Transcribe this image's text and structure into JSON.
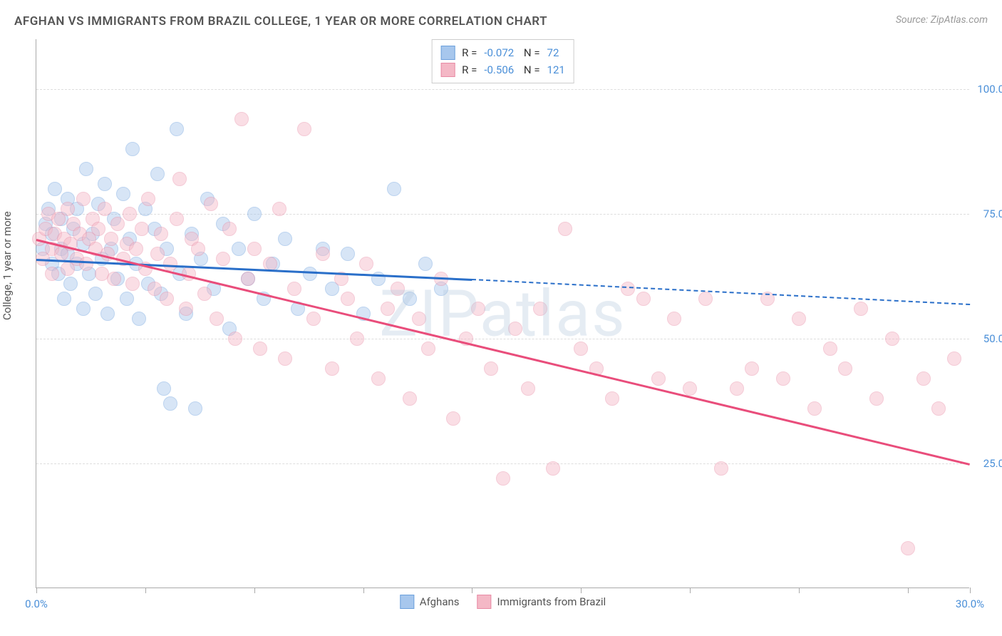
{
  "title": "AFGHAN VS IMMIGRANTS FROM BRAZIL COLLEGE, 1 YEAR OR MORE CORRELATION CHART",
  "source": "Source: ZipAtlas.com",
  "ylabel": "College, 1 year or more",
  "watermark": "ZIPatlas",
  "chart": {
    "type": "scatter",
    "xlim": [
      0,
      30
    ],
    "ylim": [
      0,
      110
    ],
    "xtick_positions": [
      0,
      3.5,
      7,
      10.5,
      14,
      17.5,
      21,
      24.5,
      28,
      30
    ],
    "xtick_labels": {
      "0": "0.0%",
      "30": "30.0%"
    },
    "ytick_positions": [
      25,
      50,
      75,
      100
    ],
    "ytick_labels": [
      "25.0%",
      "50.0%",
      "75.0%",
      "100.0%"
    ],
    "grid_color": "#dddddd",
    "axis_color": "#aaaaaa",
    "label_color": "#4a8fd8",
    "background_color": "#ffffff",
    "marker_radius": 10,
    "marker_opacity": 0.45,
    "series": [
      {
        "name": "Afghans",
        "fill": "#a7c7ed",
        "stroke": "#6ca0dc",
        "line_color": "#2a6fc9",
        "R": "-0.072",
        "N": "72",
        "trend": {
          "x1": 0,
          "y1": 66,
          "x2": 14,
          "y2": 62,
          "ext_x2": 30,
          "ext_y2": 57
        },
        "points": [
          [
            0.2,
            68
          ],
          [
            0.3,
            73
          ],
          [
            0.4,
            76
          ],
          [
            0.5,
            65
          ],
          [
            0.5,
            71
          ],
          [
            0.6,
            80
          ],
          [
            0.7,
            63
          ],
          [
            0.8,
            68
          ],
          [
            0.8,
            74
          ],
          [
            0.9,
            58
          ],
          [
            1.0,
            78
          ],
          [
            1.0,
            67
          ],
          [
            1.1,
            61
          ],
          [
            1.2,
            72
          ],
          [
            1.3,
            65
          ],
          [
            1.3,
            76
          ],
          [
            1.5,
            56
          ],
          [
            1.5,
            69
          ],
          [
            1.6,
            84
          ],
          [
            1.7,
            63
          ],
          [
            1.8,
            71
          ],
          [
            1.9,
            59
          ],
          [
            2.0,
            77
          ],
          [
            2.1,
            66
          ],
          [
            2.2,
            81
          ],
          [
            2.3,
            55
          ],
          [
            2.4,
            68
          ],
          [
            2.5,
            74
          ],
          [
            2.6,
            62
          ],
          [
            2.8,
            79
          ],
          [
            2.9,
            58
          ],
          [
            3.0,
            70
          ],
          [
            3.1,
            88
          ],
          [
            3.2,
            65
          ],
          [
            3.3,
            54
          ],
          [
            3.5,
            76
          ],
          [
            3.6,
            61
          ],
          [
            3.8,
            72
          ],
          [
            3.9,
            83
          ],
          [
            4.0,
            59
          ],
          [
            4.1,
            40
          ],
          [
            4.2,
            68
          ],
          [
            4.3,
            37
          ],
          [
            4.5,
            92
          ],
          [
            4.6,
            63
          ],
          [
            4.8,
            55
          ],
          [
            5.0,
            71
          ],
          [
            5.1,
            36
          ],
          [
            5.3,
            66
          ],
          [
            5.5,
            78
          ],
          [
            5.7,
            60
          ],
          [
            6.0,
            73
          ],
          [
            6.2,
            52
          ],
          [
            6.5,
            68
          ],
          [
            6.8,
            62
          ],
          [
            7.0,
            75
          ],
          [
            7.3,
            58
          ],
          [
            7.6,
            65
          ],
          [
            8.0,
            70
          ],
          [
            8.4,
            56
          ],
          [
            8.8,
            63
          ],
          [
            9.2,
            68
          ],
          [
            9.5,
            60
          ],
          [
            10.0,
            67
          ],
          [
            10.5,
            55
          ],
          [
            11.0,
            62
          ],
          [
            11.5,
            80
          ],
          [
            12.0,
            58
          ],
          [
            12.5,
            65
          ],
          [
            13.0,
            60
          ]
        ]
      },
      {
        "name": "Immigrants from Brazil",
        "fill": "#f4b8c6",
        "stroke": "#e88ba5",
        "line_color": "#e94d7b",
        "R": "-0.506",
        "N": "121",
        "trend": {
          "x1": 0,
          "y1": 70,
          "x2": 30,
          "y2": 25
        },
        "points": [
          [
            0.1,
            70
          ],
          [
            0.2,
            66
          ],
          [
            0.3,
            72
          ],
          [
            0.4,
            75
          ],
          [
            0.5,
            68
          ],
          [
            0.5,
            63
          ],
          [
            0.6,
            71
          ],
          [
            0.7,
            74
          ],
          [
            0.8,
            67
          ],
          [
            0.9,
            70
          ],
          [
            1.0,
            76
          ],
          [
            1.0,
            64
          ],
          [
            1.1,
            69
          ],
          [
            1.2,
            73
          ],
          [
            1.3,
            66
          ],
          [
            1.4,
            71
          ],
          [
            1.5,
            78
          ],
          [
            1.6,
            65
          ],
          [
            1.7,
            70
          ],
          [
            1.8,
            74
          ],
          [
            1.9,
            68
          ],
          [
            2.0,
            72
          ],
          [
            2.1,
            63
          ],
          [
            2.2,
            76
          ],
          [
            2.3,
            67
          ],
          [
            2.4,
            70
          ],
          [
            2.5,
            62
          ],
          [
            2.6,
            73
          ],
          [
            2.8,
            66
          ],
          [
            2.9,
            69
          ],
          [
            3.0,
            75
          ],
          [
            3.1,
            61
          ],
          [
            3.2,
            68
          ],
          [
            3.4,
            72
          ],
          [
            3.5,
            64
          ],
          [
            3.6,
            78
          ],
          [
            3.8,
            60
          ],
          [
            3.9,
            67
          ],
          [
            4.0,
            71
          ],
          [
            4.2,
            58
          ],
          [
            4.3,
            65
          ],
          [
            4.5,
            74
          ],
          [
            4.6,
            82
          ],
          [
            4.8,
            56
          ],
          [
            4.9,
            63
          ],
          [
            5.0,
            70
          ],
          [
            5.2,
            68
          ],
          [
            5.4,
            59
          ],
          [
            5.6,
            77
          ],
          [
            5.8,
            54
          ],
          [
            6.0,
            66
          ],
          [
            6.2,
            72
          ],
          [
            6.4,
            50
          ],
          [
            6.6,
            94
          ],
          [
            6.8,
            62
          ],
          [
            7.0,
            68
          ],
          [
            7.2,
            48
          ],
          [
            7.5,
            65
          ],
          [
            7.8,
            76
          ],
          [
            8.0,
            46
          ],
          [
            8.3,
            60
          ],
          [
            8.6,
            92
          ],
          [
            8.9,
            54
          ],
          [
            9.2,
            67
          ],
          [
            9.5,
            44
          ],
          [
            9.8,
            62
          ],
          [
            10.0,
            58
          ],
          [
            10.3,
            50
          ],
          [
            10.6,
            65
          ],
          [
            11.0,
            42
          ],
          [
            11.3,
            56
          ],
          [
            11.6,
            60
          ],
          [
            12.0,
            38
          ],
          [
            12.3,
            54
          ],
          [
            12.6,
            48
          ],
          [
            13.0,
            62
          ],
          [
            13.4,
            34
          ],
          [
            13.8,
            50
          ],
          [
            14.2,
            56
          ],
          [
            14.6,
            44
          ],
          [
            15.0,
            22
          ],
          [
            15.4,
            52
          ],
          [
            15.8,
            40
          ],
          [
            16.2,
            56
          ],
          [
            16.6,
            24
          ],
          [
            17.0,
            72
          ],
          [
            17.5,
            48
          ],
          [
            18.0,
            44
          ],
          [
            18.5,
            38
          ],
          [
            19.0,
            60
          ],
          [
            19.5,
            58
          ],
          [
            20.0,
            42
          ],
          [
            20.5,
            54
          ],
          [
            21.0,
            40
          ],
          [
            21.5,
            58
          ],
          [
            22.0,
            24
          ],
          [
            22.5,
            40
          ],
          [
            23.0,
            44
          ],
          [
            23.5,
            58
          ],
          [
            24.0,
            42
          ],
          [
            24.5,
            54
          ],
          [
            25.0,
            36
          ],
          [
            25.5,
            48
          ],
          [
            26.0,
            44
          ],
          [
            26.5,
            56
          ],
          [
            27.0,
            38
          ],
          [
            27.5,
            50
          ],
          [
            28.0,
            8
          ],
          [
            28.5,
            42
          ],
          [
            29.0,
            36
          ],
          [
            29.5,
            46
          ]
        ]
      }
    ]
  },
  "legend_bottom": [
    {
      "swatch_fill": "#a7c7ed",
      "swatch_stroke": "#6ca0dc",
      "label": "Afghans"
    },
    {
      "swatch_fill": "#f4b8c6",
      "swatch_stroke": "#e88ba5",
      "label": "Immigrants from Brazil"
    }
  ]
}
